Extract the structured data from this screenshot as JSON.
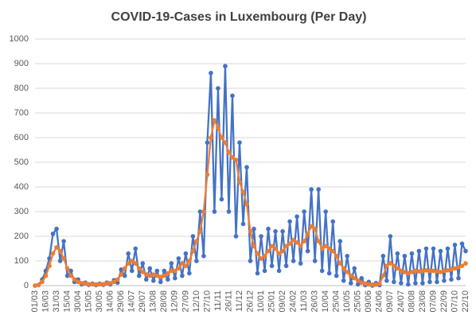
{
  "chart_data": {
    "type": "line",
    "title": "COVID-19-Cases in Luxembourg (Per Day)",
    "categories": [
      "01/03",
      null,
      null,
      "16/03",
      null,
      null,
      "31/03",
      null,
      null,
      "15/04",
      null,
      null,
      "30/04",
      null,
      null,
      "15/05",
      null,
      null,
      "30/05",
      null,
      null,
      "14/06",
      null,
      null,
      "29/06",
      null,
      null,
      "14/07",
      null,
      null,
      "29/07",
      null,
      null,
      "13/08",
      null,
      null,
      "28/08",
      null,
      null,
      "12/09",
      null,
      null,
      "27/09",
      null,
      null,
      "12/10",
      null,
      null,
      "27/10",
      null,
      null,
      "11/11",
      null,
      null,
      "26/11",
      null,
      null,
      "11/12",
      null,
      null,
      "26/12",
      null,
      null,
      "10/01",
      null,
      null,
      "25/01",
      null,
      null,
      "09/02",
      null,
      null,
      "24/02",
      null,
      null,
      "11/03",
      null,
      null,
      "26/03",
      null,
      null,
      "10/04",
      null,
      null,
      "25/04",
      null,
      null,
      "10/05",
      null,
      null,
      "25/05",
      null,
      null,
      "09/06",
      null,
      null,
      "24/06",
      null,
      null,
      "09/07",
      null,
      null,
      "24/07",
      null,
      null,
      "08/08",
      null,
      null,
      "23/08",
      null,
      null,
      "07/09",
      null,
      null,
      "22/09",
      null,
      null,
      "07/10",
      null,
      null,
      "22/10"
    ],
    "series": [
      {
        "color": "#4472c4",
        "values": [
          0,
          3,
          25,
          60,
          110,
          210,
          230,
          100,
          180,
          40,
          60,
          15,
          25,
          5,
          12,
          3,
          8,
          2,
          8,
          3,
          12,
          5,
          22,
          12,
          65,
          40,
          130,
          60,
          150,
          40,
          90,
          25,
          70,
          20,
          60,
          15,
          60,
          25,
          90,
          30,
          110,
          40,
          130,
          50,
          200,
          100,
          300,
          120,
          580,
          862,
          300,
          800,
          350,
          890,
          300,
          770,
          200,
          580,
          250,
          480,
          100,
          230,
          50,
          200,
          60,
          230,
          80,
          220,
          60,
          220,
          80,
          260,
          100,
          280,
          90,
          300,
          140,
          390,
          100,
          390,
          60,
          300,
          50,
          260,
          40,
          180,
          20,
          120,
          10,
          70,
          5,
          30,
          2,
          15,
          0,
          10,
          2,
          120,
          20,
          200,
          15,
          130,
          10,
          120,
          5,
          130,
          10,
          140,
          10,
          150,
          15,
          150,
          15,
          140,
          20,
          150,
          25,
          165,
          30,
          170,
          140
        ]
      },
      {
        "color": "#ed7d31",
        "values": [
          0,
          2,
          15,
          40,
          80,
          130,
          155,
          140,
          110,
          70,
          40,
          25,
          15,
          10,
          8,
          6,
          5,
          5,
          5,
          6,
          8,
          10,
          15,
          25,
          45,
          70,
          90,
          100,
          90,
          70,
          55,
          45,
          40,
          45,
          40,
          35,
          40,
          50,
          60,
          60,
          70,
          90,
          80,
          100,
          140,
          180,
          220,
          300,
          450,
          600,
          670,
          640,
          600,
          580,
          540,
          520,
          510,
          420,
          380,
          330,
          220,
          160,
          130,
          110,
          120,
          140,
          160,
          150,
          130,
          140,
          160,
          170,
          185,
          175,
          160,
          180,
          210,
          240,
          230,
          180,
          150,
          160,
          150,
          140,
          120,
          90,
          70,
          55,
          40,
          30,
          20,
          12,
          8,
          5,
          4,
          4,
          8,
          40,
          80,
          90,
          80,
          70,
          60,
          55,
          50,
          55,
          60,
          58,
          60,
          62,
          60,
          60,
          58,
          55,
          60,
          62,
          65,
          70,
          75,
          80,
          90
        ]
      }
    ],
    "ylim": [
      0,
      1000
    ],
    "yticks": [
      0,
      100,
      200,
      300,
      400,
      500,
      600,
      700,
      800,
      900,
      1000
    ],
    "grid": true
  }
}
